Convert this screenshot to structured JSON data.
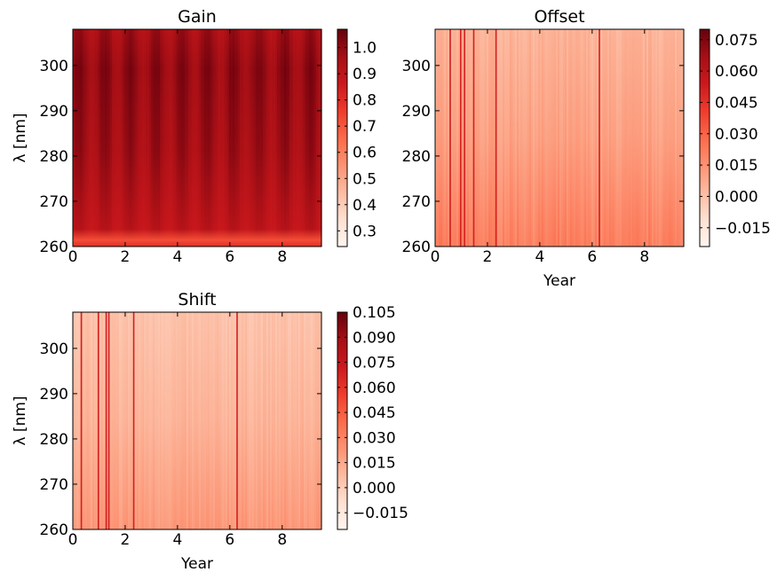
{
  "chart_data": [
    {
      "type": "heatmap",
      "title": "Gain",
      "xlabel": "",
      "ylabel": "λ [nm]",
      "xlim": [
        0,
        9.5
      ],
      "ylim": [
        260,
        308
      ],
      "xticks": [
        "0",
        "2",
        "4",
        "6",
        "8"
      ],
      "yticks": [
        "260",
        "270",
        "280",
        "290",
        "300"
      ],
      "colormap": "Reds",
      "colorbar": {
        "vmin": 0.24,
        "vmax": 1.07,
        "ticks": [
          "0.3",
          "0.4",
          "0.5",
          "0.6",
          "0.7",
          "0.8",
          "0.9",
          "1.0"
        ]
      },
      "typical_value": 0.95,
      "dark_columns_year": [],
      "notes": "values mostly 0.9-1.05 with periodic darker bands; lower values near 260 nm"
    },
    {
      "type": "heatmap",
      "title": "Offset",
      "xlabel": "Year",
      "ylabel": "",
      "xlim": [
        0,
        9.5
      ],
      "ylim": [
        260,
        308
      ],
      "xticks": [
        "0",
        "2",
        "4",
        "6",
        "8"
      ],
      "yticks": [
        "260",
        "270",
        "280",
        "290",
        "300"
      ],
      "colormap": "Reds",
      "colorbar": {
        "vmin": -0.024,
        "vmax": 0.08,
        "ticks": [
          "−0.015",
          "0.000",
          "0.015",
          "0.030",
          "0.045",
          "0.060",
          "0.075"
        ]
      },
      "typical_value_range": [
        0.002,
        0.02
      ],
      "dark_columns_year": [
        0.55,
        0.95,
        1.1,
        1.45,
        2.3,
        6.25
      ]
    },
    {
      "type": "heatmap",
      "title": "Shift",
      "xlabel": "Year",
      "ylabel": "λ [nm]",
      "xlim": [
        0,
        9.5
      ],
      "ylim": [
        260,
        308
      ],
      "xticks": [
        "0",
        "2",
        "4",
        "6",
        "8"
      ],
      "yticks": [
        "260",
        "270",
        "280",
        "290",
        "300"
      ],
      "colormap": "Reds",
      "colorbar": {
        "vmin": -0.025,
        "vmax": 0.105,
        "ticks": [
          "−0.015",
          "0.000",
          "0.015",
          "0.030",
          "0.045",
          "0.060",
          "0.075",
          "0.090",
          "0.105"
        ]
      },
      "typical_value_range": [
        0.002,
        0.02
      ],
      "dark_columns_year": [
        0.3,
        0.95,
        1.25,
        1.35,
        2.3,
        6.25
      ]
    }
  ]
}
